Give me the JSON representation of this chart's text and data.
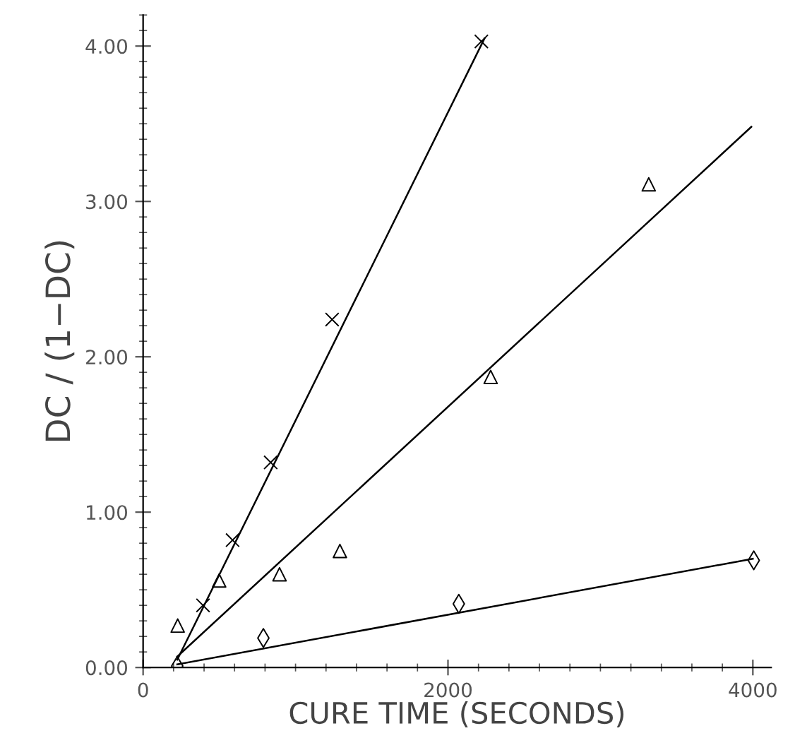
{
  "chart_data": {
    "type": "scatter",
    "xlabel": "CURE TIME (SECONDS)",
    "ylabel": "DC / (1−DC)",
    "xlim": [
      0,
      4120
    ],
    "ylim": [
      0,
      4.2
    ],
    "xticks": [
      0,
      2000,
      4000
    ],
    "yticks": [
      {
        "value": 0,
        "label": "0.00"
      },
      {
        "value": 1,
        "label": "1.00"
      },
      {
        "value": 2,
        "label": "2.00"
      },
      {
        "value": 3,
        "label": "3.00"
      },
      {
        "value": 4,
        "label": "4.00"
      }
    ],
    "grid": false,
    "legend": false,
    "series": [
      {
        "marker": "cross",
        "color": "#000000",
        "x": [
          393,
          587,
          837,
          1240,
          2219
        ],
        "values": [
          0.4,
          0.82,
          1.32,
          2.24,
          4.03
        ]
      },
      {
        "marker": "triangle",
        "color": "#000000",
        "x": [
          227,
          499,
          895,
          1291,
          2280,
          3317
        ],
        "values": [
          0.27,
          0.56,
          0.6,
          0.75,
          1.87,
          3.11
        ]
      },
      {
        "marker": "diamond",
        "color": "#000000",
        "x": [
          224,
          789,
          2071,
          4006
        ],
        "values": [
          0.01,
          0.19,
          0.41,
          0.69
        ]
      },
      {
        "type": "line",
        "marker": "none",
        "color": "#000000",
        "x": [
          224,
          2240
        ],
        "values": [
          0.05,
          4.05
        ]
      },
      {
        "type": "line",
        "marker": "none",
        "color": "#000000",
        "x": [
          224,
          3990
        ],
        "values": [
          0.07,
          3.48
        ]
      },
      {
        "type": "line",
        "marker": "none",
        "color": "#000000",
        "x": [
          224,
          4000
        ],
        "values": [
          0.02,
          0.7
        ]
      }
    ]
  }
}
